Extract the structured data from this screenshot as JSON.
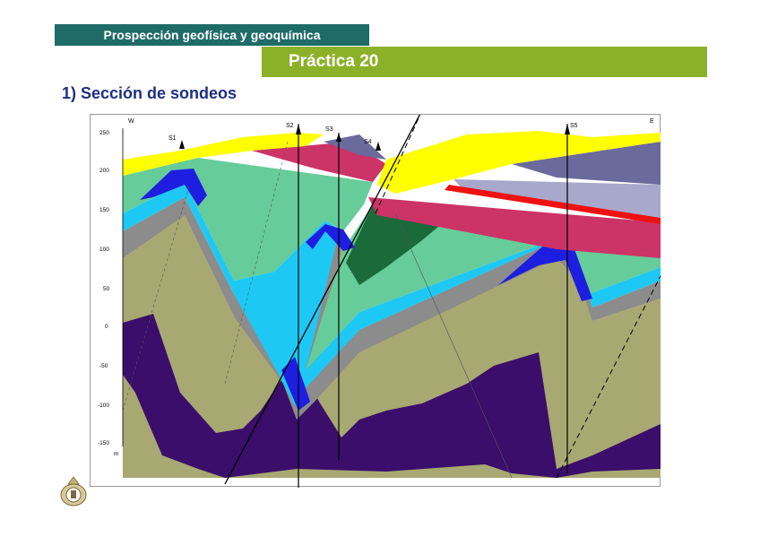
{
  "header": {
    "course_title": "Prospección geofísica y geoquímica",
    "practice_title": "Práctica 20"
  },
  "section": {
    "title": "1) Sección de sondeos"
  },
  "figure": {
    "west_label": "W",
    "east_label": "E",
    "unit_label": "m",
    "y_ticks": [
      "250",
      "200",
      "150",
      "100",
      "50",
      "0",
      "-50",
      "-100",
      "-150"
    ],
    "boreholes": [
      "S1",
      "S2",
      "S3",
      "S4",
      "S5"
    ],
    "colors": {
      "yellow": "#ffff00",
      "magenta": "#cc3366",
      "slate": "#6a6a9c",
      "lavender": "#a8a8cc",
      "red": "#ee1111",
      "green_light": "#66cc99",
      "green_dark": "#1a6a3a",
      "blue": "#1e1ee0",
      "cyan": "#1ec8f4",
      "gray": "#8c8c8c",
      "olive": "#a8a872",
      "purple": "#3a0e6a"
    }
  },
  "logo": {
    "icon": "university-seal-icon"
  }
}
